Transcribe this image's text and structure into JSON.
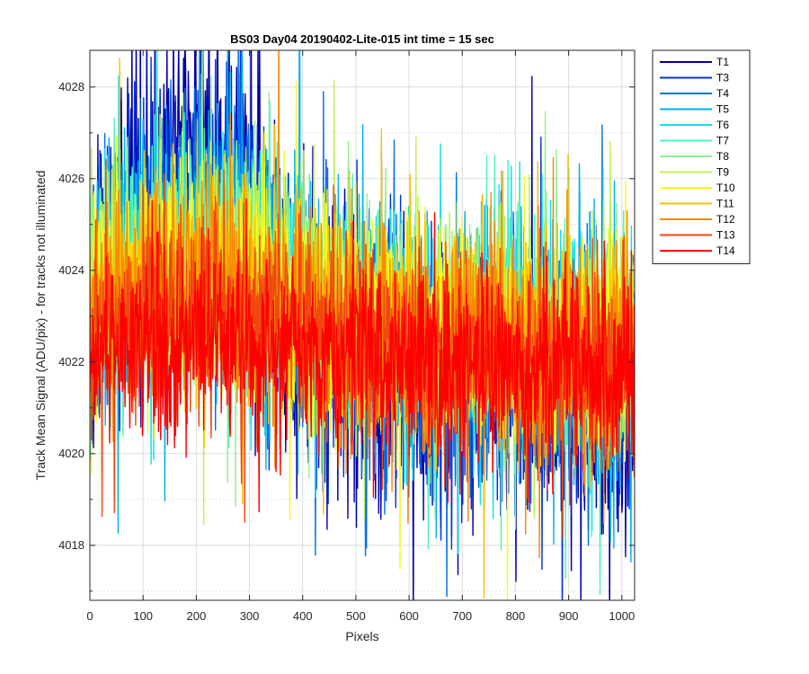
{
  "chart_data": {
    "type": "line",
    "title": "BS03 Day04 20190402-Lite-015 int time = 15 sec",
    "xlabel": "Pixels",
    "ylabel": "Track Mean Signal (ADU/pix) - for tracks not illuminated",
    "xlim": [
      0,
      1024
    ],
    "ylim": [
      4016.8,
      4028.8
    ],
    "xticks": [
      0,
      100,
      200,
      300,
      400,
      500,
      600,
      700,
      800,
      900,
      1000
    ],
    "yticks": [
      4018,
      4020,
      4022,
      4024,
      4026,
      4028
    ],
    "y_minor_ticks": [
      4017,
      4019,
      4021,
      4023,
      4025,
      4027
    ],
    "grid": true,
    "minor_grid": true,
    "legend_position": "outside-top-right",
    "n_points_per_series": 1024,
    "series": [
      {
        "name": "T1",
        "color": "#0000aa",
        "mean": 4022.6,
        "noise": 1.45,
        "values": [
          4023.2,
          4025.6,
          4027.3,
          4026.1,
          4023.0,
          4022.4,
          4021.3,
          4021.5,
          4021.9,
          4021.3,
          4021.0,
          4020.9
        ]
      },
      {
        "name": "T3",
        "color": "#0033dd",
        "mean": 4022.6,
        "noise": 1.35,
        "values": [
          4023.0,
          4024.8,
          4025.4,
          4025.8,
          4023.3,
          4022.5,
          4022.3,
          4021.8,
          4021.9,
          4021.4,
          4021.6,
          4021.3
        ]
      },
      {
        "name": "T4",
        "color": "#0070e8",
        "mean": 4022.6,
        "noise": 1.3,
        "values": [
          4023.3,
          4024.6,
          4024.8,
          4025.0,
          4023.4,
          4022.6,
          4022.4,
          4022.0,
          4022.3,
          4021.8,
          4022.0,
          4021.7
        ]
      },
      {
        "name": "T5",
        "color": "#00b0f0",
        "mean": 4022.7,
        "noise": 1.3,
        "values": [
          4023.4,
          4024.4,
          4024.5,
          4024.7,
          4023.5,
          4022.8,
          4022.6,
          4022.2,
          4022.5,
          4022.0,
          4022.2,
          4022.0
        ]
      },
      {
        "name": "T6",
        "color": "#10e0f0",
        "mean": 4022.7,
        "noise": 1.25,
        "values": [
          4023.5,
          4024.3,
          4024.3,
          4024.5,
          4023.6,
          4022.9,
          4022.7,
          4022.4,
          4022.6,
          4022.2,
          4022.4,
          4022.2
        ]
      },
      {
        "name": "T7",
        "color": "#50f0c0",
        "mean": 4022.8,
        "noise": 1.25,
        "values": [
          4023.6,
          4024.2,
          4024.2,
          4024.4,
          4023.7,
          4023.0,
          4022.8,
          4022.5,
          4022.8,
          4022.3,
          4022.5,
          4022.3
        ]
      },
      {
        "name": "T8",
        "color": "#90f090",
        "mean": 4022.8,
        "noise": 1.2,
        "values": [
          4023.6,
          4024.1,
          4024.1,
          4024.3,
          4023.7,
          4023.1,
          4022.9,
          4022.6,
          4022.9,
          4022.4,
          4022.6,
          4022.4
        ]
      },
      {
        "name": "T9",
        "color": "#c0f050",
        "mean": 4022.8,
        "noise": 1.2,
        "values": [
          4023.5,
          4024.0,
          4024.0,
          4024.2,
          4023.6,
          4023.1,
          4022.9,
          4022.7,
          4022.9,
          4022.5,
          4022.6,
          4022.5
        ]
      },
      {
        "name": "T10",
        "color": "#f8f820",
        "mean": 4022.8,
        "noise": 1.2,
        "values": [
          4023.4,
          4023.8,
          4023.9,
          4024.0,
          4023.5,
          4023.0,
          4022.9,
          4022.6,
          4022.8,
          4022.4,
          4022.5,
          4022.4
        ]
      },
      {
        "name": "T11",
        "color": "#f8c000",
        "mean": 4022.7,
        "noise": 1.15,
        "values": [
          4023.2,
          4023.6,
          4023.7,
          4023.8,
          4023.3,
          4022.9,
          4022.8,
          4022.5,
          4022.7,
          4022.3,
          4022.4,
          4022.3
        ]
      },
      {
        "name": "T12",
        "color": "#f88a00",
        "mean": 4022.6,
        "noise": 1.15,
        "values": [
          4023.0,
          4023.4,
          4023.5,
          4023.6,
          4023.1,
          4022.7,
          4022.6,
          4022.4,
          4022.5,
          4022.1,
          4022.3,
          4022.2
        ]
      },
      {
        "name": "T13",
        "color": "#f04810",
        "mean": 4022.4,
        "noise": 1.1,
        "values": [
          4022.6,
          4023.0,
          4023.1,
          4023.2,
          4022.8,
          4022.4,
          4022.3,
          4022.1,
          4022.2,
          4021.9,
          4022.0,
          4021.9
        ]
      },
      {
        "name": "T14",
        "color": "#ff0000",
        "mean": 4022.2,
        "noise": 1.0,
        "values": [
          4022.2,
          4022.4,
          4022.5,
          4022.6,
          4022.3,
          4022.1,
          4022.1,
          4021.9,
          4022.0,
          4021.7,
          4021.8,
          4021.7
        ]
      }
    ],
    "value_sample_x": [
      0,
      93,
      186,
      279,
      372,
      465,
      558,
      651,
      744,
      837,
      930,
      1023
    ]
  }
}
